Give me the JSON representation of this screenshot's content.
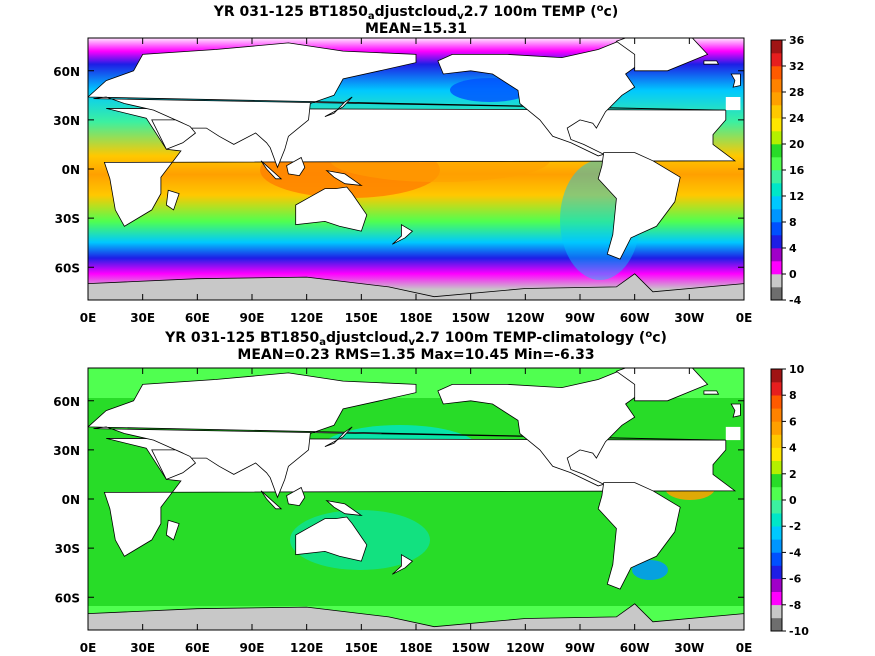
{
  "chart_data": [
    {
      "type": "heatmap",
      "title_prefix": "YR 031-125 BT1850",
      "title_sub1": "a",
      "title_mid": "djustcloud",
      "title_sub2": "v",
      "title_suffix": "2.7 100m TEMP (",
      "title_sup": "o",
      "title_end": "c)",
      "stats": "MEAN=15.31",
      "xticks": [
        "0E",
        "30E",
        "60E",
        "90E",
        "120E",
        "150E",
        "180E",
        "150W",
        "120W",
        "90W",
        "60W",
        "30W",
        "0E"
      ],
      "yticks": [
        "60N",
        "30N",
        "0N",
        "30S",
        "60S"
      ],
      "colorbar_ticks": [
        "36",
        "32",
        "28",
        "24",
        "20",
        "16",
        "12",
        "8",
        "4",
        "0",
        "-4"
      ],
      "colorbar_range": [
        -4,
        36
      ],
      "colorbar_colors": [
        "#6e6e6e",
        "#c8c8c8",
        "#ff00ff",
        "#a000c8",
        "#1e1ee6",
        "#0050ff",
        "#0096ff",
        "#00c8ff",
        "#00e6c8",
        "#3cf0a0",
        "#50ff50",
        "#28dc28",
        "#b4f000",
        "#ffe600",
        "#ffc800",
        "#ffa000",
        "#ff8200",
        "#ff5a00",
        "#e61e1e",
        "#a01414"
      ],
      "field_summary": "ocean temperature at 100m, warm pool ~28-30 in western Pacific, cold <4 poleward of 60S"
    },
    {
      "type": "heatmap",
      "title_prefix": "YR 031-125 BT1850",
      "title_sub1": "a",
      "title_mid": "djustcloud",
      "title_sub2": "v",
      "title_suffix": "2.7 100m TEMP-climatology (",
      "title_sup": "o",
      "title_end": "c)",
      "stats": "MEAN=0.23   RMS=1.35   Max=10.45   Min=-6.33",
      "xticks": [
        "0E",
        "30E",
        "60E",
        "90E",
        "120E",
        "150E",
        "180E",
        "150W",
        "120W",
        "90W",
        "60W",
        "30W",
        "0E"
      ],
      "yticks": [
        "60N",
        "30N",
        "0N",
        "30S",
        "60S"
      ],
      "colorbar_ticks": [
        "10",
        "8",
        "6",
        "4",
        "2",
        "0",
        "-2",
        "-4",
        "-6",
        "-8",
        "-10"
      ],
      "colorbar_range": [
        -10,
        10
      ],
      "colorbar_colors": [
        "#6e6e6e",
        "#c8c8c8",
        "#ff00ff",
        "#a000c8",
        "#1e1ee6",
        "#0050ff",
        "#0096ff",
        "#00c8ff",
        "#00e6c8",
        "#3cf0a0",
        "#50ff50",
        "#28dc28",
        "#b4f000",
        "#ffe600",
        "#ffc800",
        "#ffa000",
        "#ff8200",
        "#ff5a00",
        "#e61e1e",
        "#a01414"
      ]
    }
  ]
}
